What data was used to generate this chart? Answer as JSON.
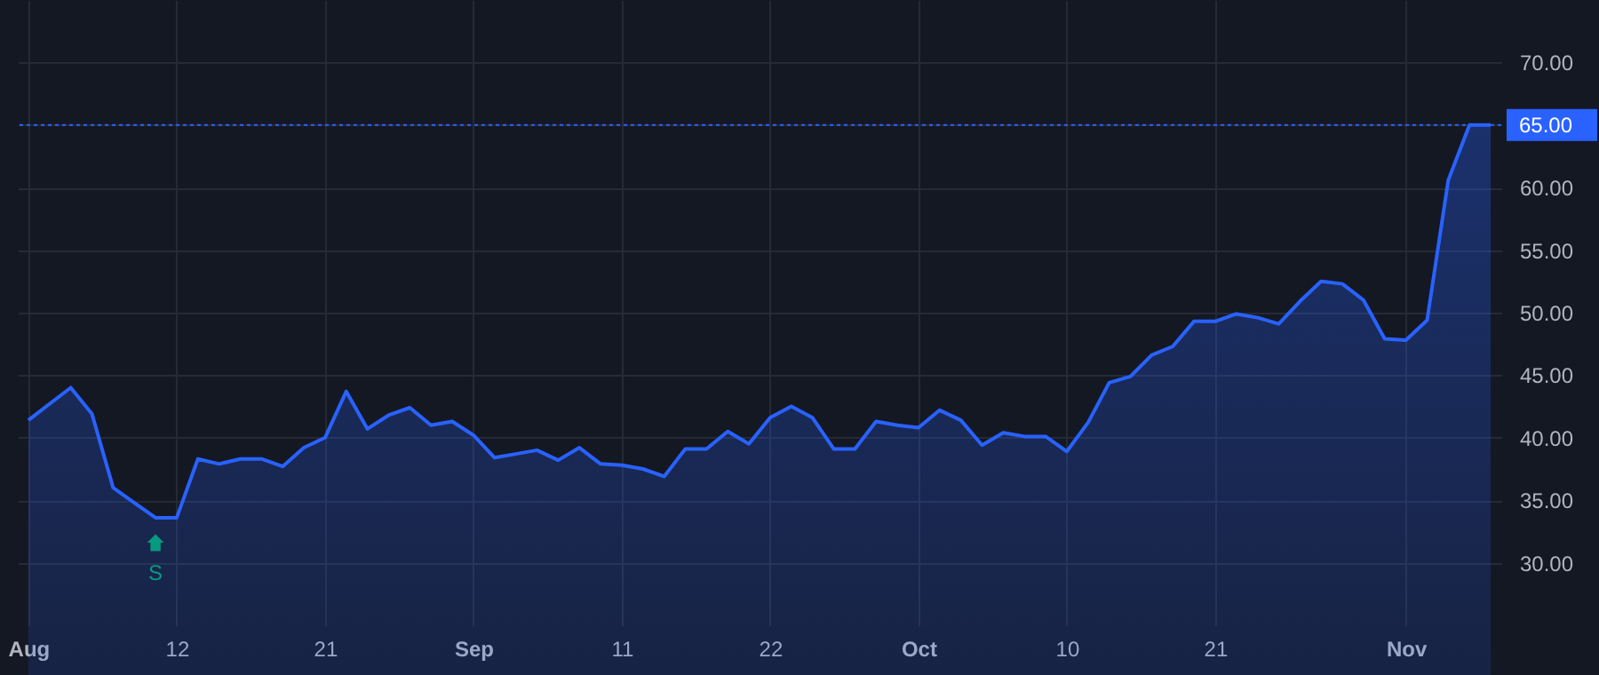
{
  "chart_data": {
    "type": "area",
    "categories": [
      "Aug",
      null,
      null,
      null,
      null,
      null,
      null,
      "12",
      null,
      null,
      null,
      null,
      null,
      null,
      "21",
      null,
      null,
      null,
      null,
      null,
      null,
      "Sep",
      null,
      null,
      null,
      null,
      null,
      null,
      "11",
      null,
      null,
      null,
      null,
      null,
      null,
      "22",
      null,
      null,
      null,
      null,
      null,
      null,
      "Oct",
      null,
      null,
      null,
      null,
      null,
      null,
      "10",
      null,
      null,
      null,
      null,
      null,
      null,
      "21",
      null,
      null,
      null,
      null,
      null,
      null,
      null,
      null,
      "Nov",
      null,
      null,
      null,
      null
    ],
    "series": [
      {
        "color": "#2962ff",
        "values": [
          41.4,
          42.7,
          44.0,
          41.9,
          36.0,
          34.8,
          33.6,
          33.6,
          38.3,
          37.9,
          38.3,
          38.3,
          37.7,
          39.2,
          40.0,
          43.7,
          40.7,
          41.8,
          42.4,
          41.0,
          41.3,
          40.2,
          38.4,
          38.7,
          39.0,
          38.2,
          39.2,
          37.9,
          37.8,
          37.5,
          36.9,
          39.1,
          39.1,
          40.5,
          39.5,
          41.6,
          42.5,
          41.6,
          39.1,
          39.1,
          41.3,
          41.0,
          40.8,
          42.2,
          41.4,
          39.4,
          40.4,
          40.1,
          40.1,
          38.9,
          41.2,
          44.4,
          44.9,
          46.6,
          47.3,
          49.3,
          49.3,
          49.9,
          49.6,
          49.1,
          50.9,
          52.5,
          52.3,
          51.0,
          47.9,
          47.8,
          49.4,
          60.6,
          65.0,
          65.0
        ]
      }
    ],
    "ylim": [
      25,
      75
    ],
    "yticks": [
      {
        "value": 30,
        "label": "30.00"
      },
      {
        "value": 35,
        "label": "35.00"
      },
      {
        "value": 40,
        "label": "40.00"
      },
      {
        "value": 45,
        "label": "45.00"
      },
      {
        "value": 50,
        "label": "50.00"
      },
      {
        "value": 55,
        "label": "55.00"
      },
      {
        "value": 60,
        "label": "60.00"
      },
      {
        "value": 65,
        "label": null
      },
      {
        "value": 70,
        "label": "70.00"
      }
    ],
    "grid": true,
    "ref_lines": [
      {
        "axis": "y",
        "value": 65,
        "label": "65.00",
        "color": "#2962ff",
        "line_style": "dotted"
      }
    ],
    "annotations": [
      {
        "text": "S",
        "y": 33.6
      }
    ]
  }
}
